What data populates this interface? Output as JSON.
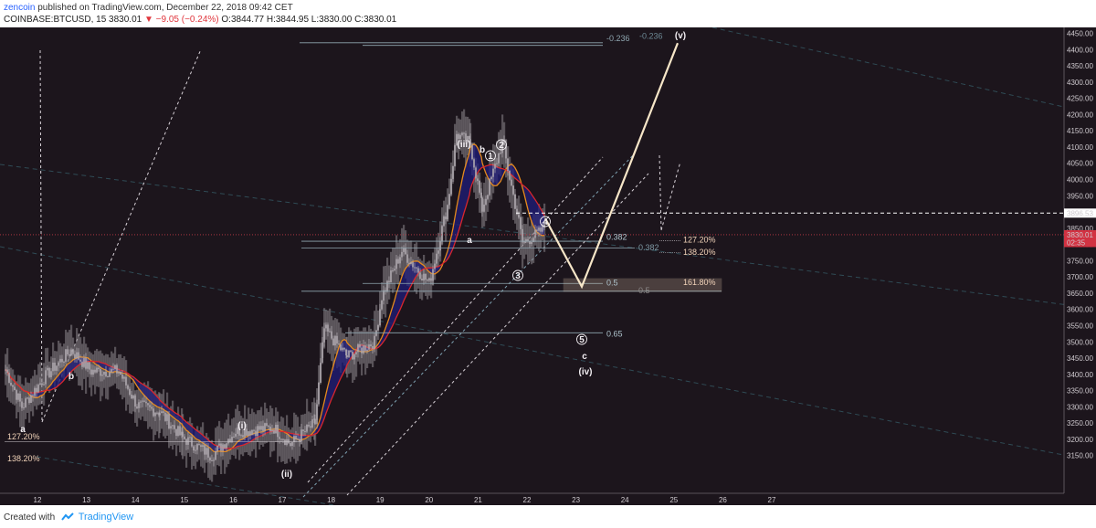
{
  "header": {
    "user": "zencoin",
    "published_text": "published on TradingView.com, December 22, 2018 09:42 CET",
    "symbol": "COINBASE:BTCUSD, 15",
    "last": "3830.01",
    "change_icon": "down-triangle-icon",
    "change": "−9.05 (−0.24%)",
    "ohlc": "O:3844.77 H:3844.95 L:3830.00 C:3830.01"
  },
  "footer": {
    "created_with": "Created with",
    "brand": "TradingView"
  },
  "colors": {
    "background": "#1c151c",
    "candle": "#b0aab0",
    "cloud": "#8a858a",
    "ema_orange": "#e68a1c",
    "ema_red": "#d9262d",
    "ribbon": "#1f1c7a",
    "projection": "#f7e6c8",
    "fib_line": "#8fa6b0",
    "price_line": "#c23a46",
    "last_price_tag": "#d23242"
  },
  "chart_data": {
    "type": "candlestick",
    "series_description": "BTCUSD 15-minute candles with moving-average ribbon and Elliott wave count",
    "x_axis": {
      "ticks": [
        "12",
        "13",
        "14",
        "15",
        "16",
        "17",
        "18",
        "19",
        "20",
        "21",
        "22",
        "23",
        "24",
        "25",
        "26",
        "27"
      ]
    },
    "y_axis": {
      "ticks": [
        "4450.00",
        "4400.00",
        "4350.00",
        "4300.00",
        "4250.00",
        "4200.00",
        "4150.00",
        "4100.00",
        "4050.00",
        "4000.00",
        "3950.00",
        "3900.00",
        "3850.00",
        "3800.00",
        "3750.00",
        "3700.00",
        "3650.00",
        "3600.00",
        "3550.00",
        "3500.00",
        "3450.00",
        "3400.00",
        "3350.00",
        "3300.00",
        "3250.00",
        "3200.00",
        "3150.00"
      ],
      "range": [
        3130,
        4480
      ]
    },
    "price_tags": [
      {
        "label": "3896.53",
        "value": 3896.53
      },
      {
        "label": "3830.01",
        "value": 3830.01
      },
      {
        "label": "02:35",
        "value": 3806
      }
    ],
    "wave_labels": [
      "a",
      "b",
      "(i)",
      "(ii)",
      "(iii)",
      "b",
      "a",
      "①",
      "②",
      "③",
      "④",
      "⑤",
      "c",
      "(iv)",
      "(v)"
    ],
    "fib_labels": [
      "-0.236",
      "-0.236",
      "0.382",
      "0.382",
      "0.5",
      "0.5",
      "0.65",
      "127.20%",
      "138.20%",
      "161.80%",
      "127.20%",
      "138.20%"
    ],
    "projection_path": [
      {
        "x": "22.5",
        "y": 3880
      },
      {
        "x": "23.2",
        "y": 3670
      },
      {
        "x": "25.2",
        "y": 4420
      }
    ],
    "target_zone": {
      "from": 3650,
      "to": 3690,
      "label": "161.80%"
    }
  }
}
